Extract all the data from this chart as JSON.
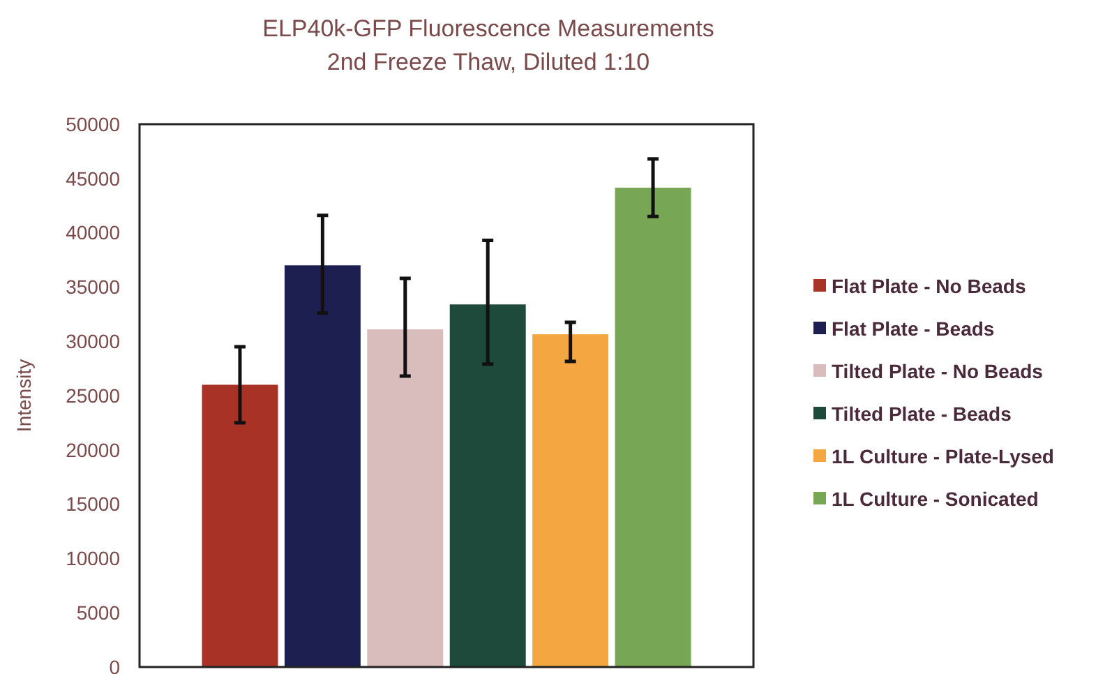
{
  "chart_data": {
    "type": "bar",
    "title": "ELP40k-GFP Fluorescence Measurements",
    "subtitle": "2nd Freeze Thaw, Diluted 1:10",
    "ylabel": "Intensity",
    "categories": [
      null
    ],
    "series": [
      {
        "name": "Flat Plate - No Beads",
        "color": "#a93226",
        "values": [
          26000
        ],
        "errors": [
          [
            22500,
            29500
          ]
        ]
      },
      {
        "name": "Flat Plate - Beads",
        "color": "#1c1f4f",
        "values": [
          37000
        ],
        "errors": [
          [
            32600,
            41600
          ]
        ]
      },
      {
        "name": "Tilted Plate - No Beads",
        "color": "#d9bcbc",
        "values": [
          31100
        ],
        "errors": [
          [
            26800,
            35800
          ]
        ]
      },
      {
        "name": "Tilted Plate - Beads",
        "color": "#1d4a3a",
        "values": [
          33400
        ],
        "errors": [
          [
            27900,
            39300
          ]
        ]
      },
      {
        "name": "1L Culture - Plate-Lysed",
        "color": "#f4a640",
        "values": [
          30650
        ],
        "errors": [
          [
            28150,
            31750
          ]
        ]
      },
      {
        "name": "1L Culture - Sonicated",
        "color": "#77a655",
        "values": [
          44150
        ],
        "errors": [
          [
            41500,
            46800
          ]
        ]
      }
    ],
    "ylim": [
      0,
      50000
    ],
    "yticks": [
      0,
      5000,
      10000,
      15000,
      20000,
      25000,
      30000,
      35000,
      40000,
      45000,
      50000
    ],
    "grid": false,
    "legend": "right"
  }
}
